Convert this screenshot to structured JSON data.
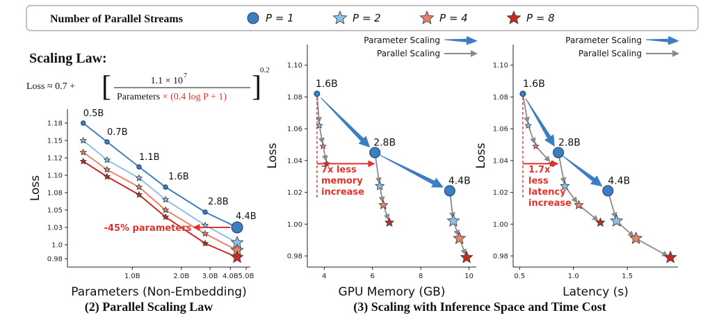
{
  "legend": {
    "title": "Number of Parallel Streams",
    "entries": [
      {
        "label": "P = 1",
        "marker": "circle",
        "color": "#3d7ec2"
      },
      {
        "label": "P = 2",
        "marker": "star",
        "color": "#8cc1e8"
      },
      {
        "label": "P = 4",
        "marker": "star",
        "color": "#e8836b"
      },
      {
        "label": "P = 8",
        "marker": "star",
        "color": "#c42b25"
      }
    ]
  },
  "scaling_law": {
    "title": "Scaling Law:",
    "lhs": "Loss ≈ 0.7 +",
    "numerator": "1.1 × 10",
    "numerator_exp": "7",
    "denominator_a": "Parameters",
    "denominator_b": " × (0.4 log P + 1)",
    "outer_exp": "0.2"
  },
  "captions": {
    "left": "(2) Parallel Scaling Law",
    "right": "(3) Scaling with Inference Space and Time Cost"
  },
  "colors": {
    "p1": "#3d7ec2",
    "p2": "#8cc1e8",
    "p4": "#e8836b",
    "p8": "#c42b25",
    "thick_arrow": "#3b7ec2",
    "thin_arrow": "#8a8a8a",
    "annotation": "#e0332b"
  },
  "chart_data": [
    {
      "type": "line",
      "xlabel": "Parameters (Non-Embedding)",
      "ylabel": "Loss",
      "x_scale": "log",
      "xlim": [
        0.4,
        5.3
      ],
      "ylim": [
        0.968,
        1.195
      ],
      "x_ticks": [
        1.0,
        2.0,
        3.0,
        4.0,
        5.0
      ],
      "x_tick_labels": [
        "1.0B",
        "2.0B",
        "3.0B",
        "4.0B",
        "5.0B"
      ],
      "y_ticks": [
        0.98,
        1.0,
        1.025,
        1.05,
        1.075,
        1.1,
        1.125,
        1.15,
        1.175
      ],
      "y_tick_labels": [
        "0.98",
        "1.0",
        "1.03",
        "1.05",
        "1.08",
        "1.10",
        "1.12",
        "1.15",
        "1.18"
      ],
      "x": [
        0.5,
        0.7,
        1.1,
        1.6,
        2.8,
        4.4
      ],
      "point_labels": [
        "0.5B",
        "0.7B",
        "1.1B",
        "1.6B",
        "2.8B",
        "4.4B"
      ],
      "series": [
        {
          "name": "P = 1",
          "values": [
            1.175,
            1.148,
            1.112,
            1.083,
            1.047,
            1.025
          ]
        },
        {
          "name": "P = 2",
          "values": [
            1.15,
            1.122,
            1.096,
            1.065,
            1.028,
            1.003
          ]
        },
        {
          "name": "P = 4",
          "values": [
            1.133,
            1.108,
            1.083,
            1.05,
            1.016,
            0.992
          ]
        },
        {
          "name": "P = 8",
          "values": [
            1.12,
            1.098,
            1.072,
            1.04,
            1.002,
            0.982
          ]
        }
      ],
      "annotation": {
        "text": "-45% parameters",
        "arrow_from": [
          4.4,
          1.025
        ],
        "arrow_to": [
          2.4,
          1.025
        ]
      }
    },
    {
      "type": "line",
      "xlabel": "GPU Memory (GB)",
      "ylabel": "Loss",
      "xlim": [
        3.3,
        10.3
      ],
      "ylim": [
        0.973,
        1.113
      ],
      "x_ticks": [
        4,
        6,
        8,
        10
      ],
      "x_tick_labels": [
        "4",
        "6",
        "8",
        "10"
      ],
      "y_ticks": [
        0.98,
        1.0,
        1.02,
        1.04,
        1.06,
        1.08,
        1.1
      ],
      "y_tick_labels": [
        "0.98",
        "1.00",
        "1.02",
        "1.04",
        "1.06",
        "1.08",
        "1.10"
      ],
      "legend_entries": [
        "Parameter Scaling",
        "Parallel Scaling"
      ],
      "models": [
        {
          "label": "1.6B",
          "points": [
            [
              3.7,
              1.082
            ],
            [
              3.8,
              1.062
            ],
            [
              3.95,
              1.049
            ],
            [
              4.1,
              1.038
            ]
          ]
        },
        {
          "label": "2.8B",
          "points": [
            [
              6.1,
              1.045
            ],
            [
              6.3,
              1.024
            ],
            [
              6.45,
              1.012
            ],
            [
              6.7,
              1.001
            ]
          ]
        },
        {
          "label": "4.4B",
          "points": [
            [
              9.2,
              1.021
            ],
            [
              9.35,
              1.002
            ],
            [
              9.6,
              0.991
            ],
            [
              9.9,
              0.979
            ]
          ]
        }
      ],
      "annotation": {
        "text": [
          "7x less",
          "memory",
          "increase"
        ],
        "arrow_from": [
          3.7,
          1.038
        ],
        "arrow_to": [
          6.05,
          1.038
        ]
      }
    },
    {
      "type": "line",
      "xlabel": "Latency (s)",
      "ylabel": "Loss",
      "xlim": [
        0.44,
        1.97
      ],
      "ylim": [
        0.973,
        1.113
      ],
      "x_ticks": [
        0.5,
        1.0,
        1.5
      ],
      "x_tick_labels": [
        "0.5",
        "1.0",
        "1.5"
      ],
      "y_ticks": [
        0.98,
        1.0,
        1.02,
        1.04,
        1.06,
        1.08,
        1.1
      ],
      "y_tick_labels": [
        "0.98",
        "1.00",
        "1.02",
        "1.04",
        "1.06",
        "1.08",
        "1.10"
      ],
      "legend_entries": [
        "Parameter Scaling",
        "Parallel Scaling"
      ],
      "models": [
        {
          "label": "1.6B",
          "points": [
            [
              0.53,
              1.082
            ],
            [
              0.58,
              1.062
            ],
            [
              0.65,
              1.049
            ],
            [
              0.8,
              1.038
            ]
          ]
        },
        {
          "label": "2.8B",
          "points": [
            [
              0.86,
              1.045
            ],
            [
              0.92,
              1.024
            ],
            [
              1.05,
              1.012
            ],
            [
              1.25,
              1.001
            ]
          ]
        },
        {
          "label": "4.4B",
          "points": [
            [
              1.32,
              1.021
            ],
            [
              1.4,
              1.002
            ],
            [
              1.58,
              0.991
            ],
            [
              1.9,
              0.979
            ]
          ]
        }
      ],
      "annotation": {
        "text": [
          "1.7x",
          "less",
          "latency",
          "increase"
        ],
        "arrow_from": [
          0.53,
          1.038
        ],
        "arrow_to": [
          0.85,
          1.038
        ]
      }
    }
  ]
}
